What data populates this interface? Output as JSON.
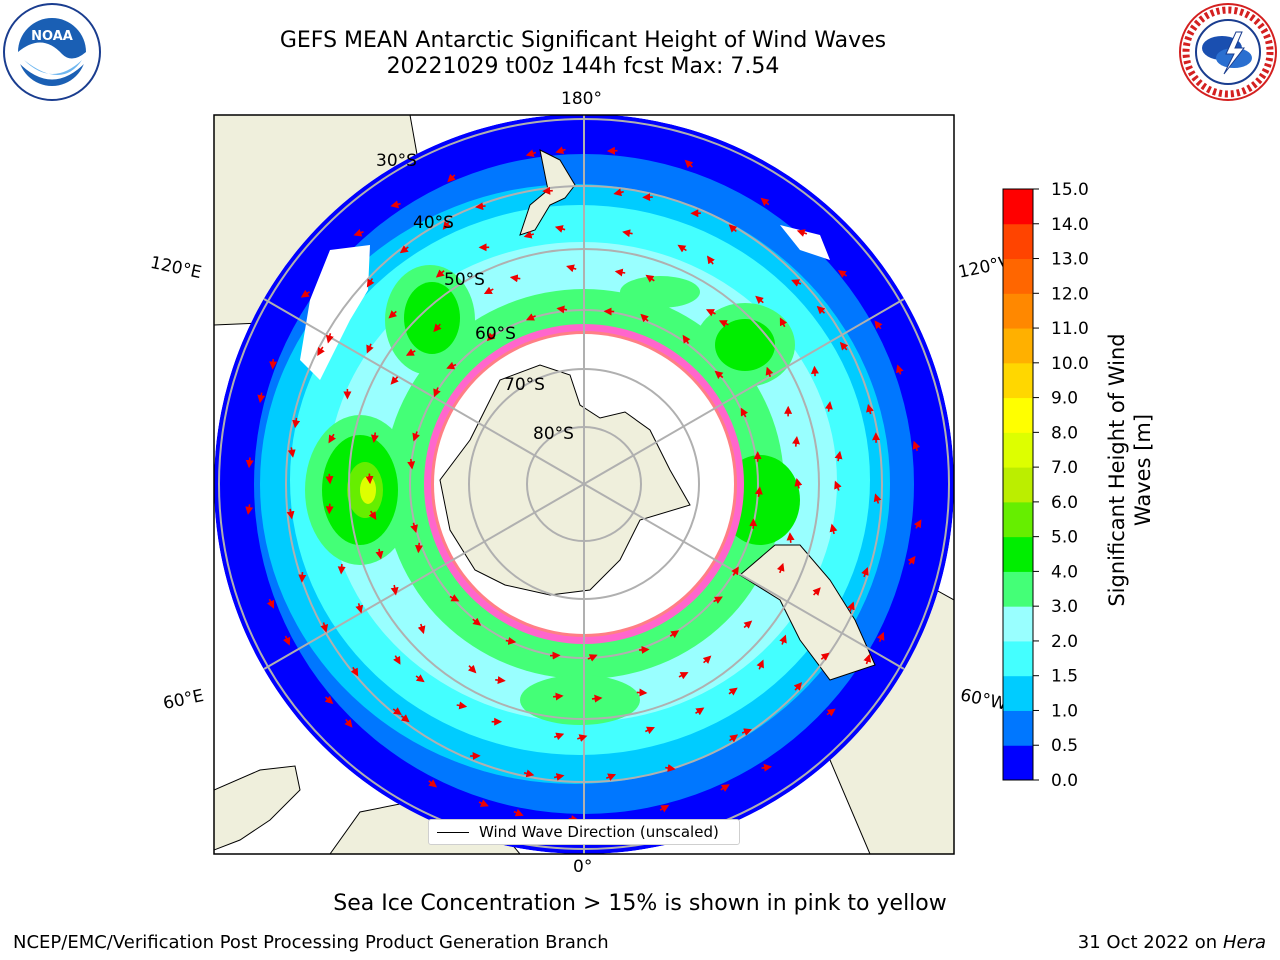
{
  "title_line1": "GEFS MEAN Antarctic Significant Height of Wind Waves",
  "title_line2": "20221029 t00z 144h fcst   Max: 7.54",
  "logos": {
    "left": "noaa-logo",
    "right": "national-weather-service-logo"
  },
  "map": {
    "projection": "south-polar-stereographic",
    "longitude_labels": [
      "180°",
      "120°E",
      "120°W",
      "60°E",
      "60°W",
      "0°"
    ],
    "latitude_labels": [
      "30°S",
      "40°S",
      "50°S",
      "60°S",
      "70°S",
      "80°S"
    ],
    "colors": {
      "land": "#efefdc",
      "coast": "#000000",
      "ice": "#ffffff",
      "arrow": "#ee0000",
      "grid": "#b0b0b0"
    }
  },
  "legend": {
    "label": "Wind Wave Direction (unscaled)"
  },
  "colorbar": {
    "label": "Significant Height of Wind Waves [m]",
    "ticks": [
      "0.0",
      "0.5",
      "1.0",
      "1.5",
      "2.0",
      "3.0",
      "4.0",
      "5.0",
      "6.0",
      "7.0",
      "8.0",
      "9.0",
      "10.0",
      "11.0",
      "12.0",
      "13.0",
      "14.0",
      "15.0"
    ],
    "colors": [
      "#0000ff",
      "#0077ff",
      "#00ccff",
      "#44ffff",
      "#99ffff",
      "#44ff77",
      "#00ee00",
      "#66ee00",
      "#bbee00",
      "#ddff00",
      "#ffff00",
      "#ffd700",
      "#ffb000",
      "#ff8800",
      "#ff6600",
      "#ff4400",
      "#ff0000"
    ]
  },
  "ice_note": "Sea Ice Concentration > 15% is shown in pink to yellow",
  "footer": {
    "left": "NCEP/EMC/Verification Post Processing Product Generation Branch",
    "right_date": "31 Oct 2022 on",
    "right_host": "Hera"
  }
}
